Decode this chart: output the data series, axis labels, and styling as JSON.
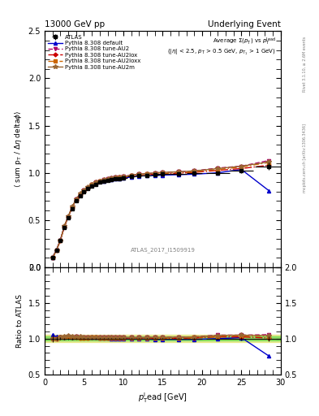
{
  "title_left": "13000 GeV pp",
  "title_right": "Underlying Event",
  "annotation": "ATLAS_2017_I1509919",
  "xlim": [
    0,
    30
  ],
  "ylim_main": [
    0,
    2.5
  ],
  "ylim_ratio": [
    0.5,
    2.0
  ],
  "x_data": [
    1.0,
    1.5,
    2.0,
    2.5,
    3.0,
    3.5,
    4.0,
    4.5,
    5.0,
    5.5,
    6.0,
    6.5,
    7.0,
    7.5,
    8.0,
    8.5,
    9.0,
    9.5,
    10.0,
    11.0,
    12.0,
    13.0,
    14.0,
    15.0,
    17.0,
    19.0,
    22.0,
    25.0,
    28.5
  ],
  "xerr": [
    0.25,
    0.25,
    0.25,
    0.25,
    0.25,
    0.25,
    0.25,
    0.25,
    0.25,
    0.25,
    0.25,
    0.25,
    0.25,
    0.25,
    0.25,
    0.25,
    0.25,
    0.25,
    0.5,
    0.5,
    0.5,
    0.5,
    0.5,
    1.0,
    1.0,
    1.0,
    1.5,
    1.5,
    1.75
  ],
  "atlas_y": [
    0.1,
    0.18,
    0.28,
    0.42,
    0.52,
    0.62,
    0.7,
    0.76,
    0.8,
    0.83,
    0.86,
    0.88,
    0.9,
    0.91,
    0.92,
    0.93,
    0.935,
    0.94,
    0.945,
    0.96,
    0.97,
    0.975,
    0.98,
    0.985,
    0.99,
    0.995,
    1.0,
    1.02,
    1.07
  ],
  "atlas_yerr": [
    0.005,
    0.005,
    0.005,
    0.005,
    0.005,
    0.005,
    0.005,
    0.005,
    0.005,
    0.005,
    0.005,
    0.005,
    0.005,
    0.005,
    0.005,
    0.005,
    0.005,
    0.005,
    0.005,
    0.005,
    0.005,
    0.005,
    0.005,
    0.005,
    0.005,
    0.01,
    0.01,
    0.02,
    0.04
  ],
  "default_y": [
    0.105,
    0.185,
    0.29,
    0.43,
    0.535,
    0.635,
    0.72,
    0.775,
    0.815,
    0.845,
    0.875,
    0.895,
    0.91,
    0.915,
    0.925,
    0.93,
    0.935,
    0.94,
    0.945,
    0.955,
    0.965,
    0.97,
    0.97,
    0.975,
    0.98,
    0.985,
    1.0,
    1.035,
    0.81
  ],
  "au2_y": [
    0.1,
    0.18,
    0.285,
    0.43,
    0.535,
    0.635,
    0.72,
    0.775,
    0.815,
    0.845,
    0.88,
    0.9,
    0.915,
    0.925,
    0.935,
    0.945,
    0.95,
    0.955,
    0.96,
    0.975,
    0.985,
    0.99,
    1.0,
    1.005,
    1.01,
    1.02,
    1.05,
    1.07,
    1.13
  ],
  "au2lox_y": [
    0.1,
    0.18,
    0.285,
    0.43,
    0.535,
    0.635,
    0.715,
    0.77,
    0.81,
    0.84,
    0.875,
    0.895,
    0.91,
    0.92,
    0.93,
    0.94,
    0.945,
    0.95,
    0.955,
    0.97,
    0.98,
    0.985,
    0.985,
    0.99,
    0.995,
    1.005,
    1.025,
    1.045,
    1.08
  ],
  "au2loxx_y": [
    0.1,
    0.18,
    0.285,
    0.43,
    0.535,
    0.635,
    0.715,
    0.77,
    0.81,
    0.84,
    0.875,
    0.895,
    0.91,
    0.92,
    0.93,
    0.94,
    0.945,
    0.95,
    0.955,
    0.97,
    0.98,
    0.985,
    0.99,
    0.995,
    1.0,
    1.01,
    1.035,
    1.06,
    1.11
  ],
  "au2m_y": [
    0.1,
    0.18,
    0.285,
    0.435,
    0.54,
    0.64,
    0.72,
    0.78,
    0.82,
    0.85,
    0.88,
    0.9,
    0.915,
    0.925,
    0.935,
    0.945,
    0.95,
    0.955,
    0.96,
    0.975,
    0.985,
    0.99,
    1.0,
    1.005,
    1.01,
    1.02,
    1.045,
    1.07,
    1.115
  ],
  "color_atlas": "#000000",
  "color_default": "#0000cc",
  "color_au2": "#aa0066",
  "color_au2lox": "#cc0000",
  "color_au2loxx": "#cc6600",
  "color_au2m": "#996633",
  "band_green": "#00cc00",
  "band_yellow": "#cccc00"
}
